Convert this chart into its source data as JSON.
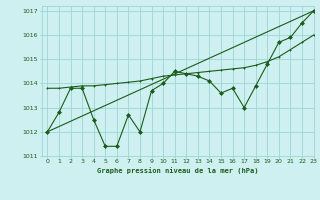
{
  "title": "Graphe pression niveau de la mer (hPa)",
  "xlim": [
    -0.5,
    23
  ],
  "ylim": [
    1011,
    1017.2
  ],
  "xticks": [
    0,
    1,
    2,
    3,
    4,
    5,
    6,
    7,
    8,
    9,
    10,
    11,
    12,
    13,
    14,
    15,
    16,
    17,
    18,
    19,
    20,
    21,
    22,
    23
  ],
  "yticks": [
    1011,
    1012,
    1013,
    1014,
    1015,
    1016,
    1017
  ],
  "background_color": "#cff0f0",
  "grid_color": "#9dd5d5",
  "line_color": "#1a5c1a",
  "line1_x": [
    0,
    1,
    2,
    3,
    4,
    5,
    6,
    7,
    8,
    9,
    10,
    11,
    12,
    13,
    14,
    15,
    16,
    17,
    18,
    19,
    20,
    21,
    22,
    23
  ],
  "line1_y": [
    1012.0,
    1012.8,
    1013.8,
    1013.8,
    1012.5,
    1011.4,
    1011.4,
    1012.7,
    1012.0,
    1013.7,
    1014.0,
    1014.5,
    1014.4,
    1014.3,
    1014.1,
    1013.6,
    1013.8,
    1013.0,
    1013.9,
    1014.8,
    1015.7,
    1015.9,
    1016.5,
    1017.0
  ],
  "line2_x": [
    0,
    1,
    2,
    3,
    4,
    5,
    6,
    7,
    8,
    9,
    10,
    11,
    12,
    13,
    14,
    15,
    16,
    17,
    18,
    19,
    20,
    21,
    22,
    23
  ],
  "line2_y": [
    1013.8,
    1013.8,
    1013.85,
    1013.9,
    1013.9,
    1013.95,
    1014.0,
    1014.05,
    1014.1,
    1014.2,
    1014.3,
    1014.35,
    1014.4,
    1014.45,
    1014.5,
    1014.55,
    1014.6,
    1014.65,
    1014.75,
    1014.9,
    1015.1,
    1015.4,
    1015.7,
    1016.0
  ],
  "line3_x": [
    0,
    23
  ],
  "line3_y": [
    1012.0,
    1017.0
  ]
}
